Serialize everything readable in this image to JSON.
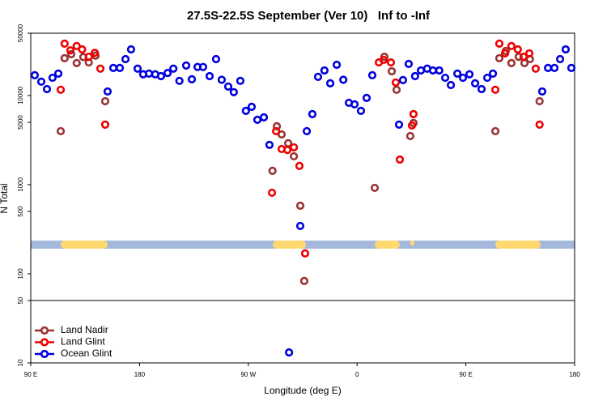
{
  "chart_data": {
    "type": "scatter",
    "title": "27.5S-22.5S September (Ver 10)   Inf to -Inf",
    "xlabel": "Longitude (deg E)",
    "ylabel": "N Total",
    "xlim": [
      90,
      540
    ],
    "xticks": [
      {
        "value": 90,
        "label": "90 E"
      },
      {
        "value": 180,
        "label": "180"
      },
      {
        "value": 270,
        "label": "90 W"
      },
      {
        "value": 360,
        "label": "0"
      },
      {
        "value": 450,
        "label": "90 E"
      },
      {
        "value": 540,
        "label": "180"
      }
    ],
    "ylim": [
      10,
      50000
    ],
    "yscale": "log",
    "yticks": [
      10,
      50,
      100,
      500,
      1000,
      5000,
      10000,
      50000
    ],
    "legend": "lower left",
    "series": [
      {
        "name": "Land Nadir",
        "color": "#993333",
        "x": [
          114.8,
          118,
          123.5,
          128,
          133.5,
          138,
          143.6,
          151.6,
          293.6,
          297.6,
          303,
          307.7,
          290,
          313,
          316.3,
          374.6,
          382.6,
          388.7,
          392.7,
          404,
          406.7,
          474.4,
          477.7,
          483,
          487.7,
          493.7,
          498.5,
          503,
          511
        ],
        "values": [
          3980,
          26200,
          29100,
          23100,
          27000,
          23500,
          28000,
          8630,
          4520,
          3660,
          2910,
          2080,
          1430,
          580,
          83,
          920,
          27200,
          18700,
          11600,
          3510,
          4910,
          3980,
          26200,
          31600,
          23100,
          27200,
          23100,
          25600,
          8630
        ]
      },
      {
        "name": "Land Glint",
        "color": "#ee0000",
        "x": [
          114.8,
          118,
          122.8,
          128,
          132.5,
          138,
          143,
          147.6,
          151.6,
          289.6,
          293,
          297.6,
          302.3,
          307.7,
          312.3,
          317,
          378,
          382,
          388,
          392,
          395.4,
          405.4,
          406.7,
          474.4,
          477.7,
          482.4,
          487.7,
          493,
          497.8,
          502.5,
          507.8,
          511
        ],
        "values": [
          11600,
          38200,
          32100,
          35900,
          32900,
          27200,
          30100,
          20000,
          4710,
          811,
          3980,
          2510,
          2450,
          2620,
          1620,
          169,
          23500,
          25100,
          23500,
          14000,
          1910,
          4610,
          6180,
          11600,
          38200,
          29700,
          35900,
          32900,
          27200,
          29700,
          20000,
          4710
        ]
      },
      {
        "name": "Ocean Glint",
        "color": "#0000dd",
        "x": [
          93.3,
          98.7,
          103.4,
          108,
          112.8,
          153.6,
          158.3,
          163.7,
          168.4,
          173,
          178.4,
          183,
          187.8,
          193,
          197.8,
          203.2,
          208,
          213,
          218.6,
          223.3,
          228,
          232.6,
          238,
          243.3,
          248,
          253.4,
          258,
          263.4,
          268,
          272.8,
          277.5,
          282.9,
          287.5,
          303.7,
          313,
          318.4,
          323,
          327.7,
          333,
          337.8,
          343.2,
          348.6,
          353.2,
          357.9,
          363.2,
          367.9,
          372.6,
          394.7,
          398,
          402.7,
          408,
          412.8,
          418,
          422.8,
          428,
          432.9,
          437.6,
          443,
          447.6,
          453,
          457.7,
          463,
          467.7,
          472.4,
          513.2,
          518,
          523.3,
          528,
          532.6,
          537.3
        ],
        "values": [
          16900,
          14300,
          11800,
          15800,
          17600,
          11100,
          20400,
          20400,
          25600,
          32900,
          20000,
          17300,
          17600,
          17300,
          16500,
          17900,
          20000,
          14600,
          21700,
          15200,
          20900,
          20900,
          16500,
          25600,
          15000,
          12600,
          10900,
          14600,
          6720,
          7460,
          5340,
          5690,
          2790,
          13.1,
          344,
          3980,
          6180,
          16200,
          19100,
          13700,
          22100,
          15000,
          8280,
          7960,
          6720,
          9400,
          16900,
          4710,
          14900,
          22600,
          16500,
          19100,
          20000,
          19100,
          19100,
          15800,
          13100,
          17600,
          15800,
          17300,
          13700,
          11800,
          15800,
          17600,
          11100,
          20400,
          20400,
          25600,
          32900,
          20400
        ]
      }
    ]
  }
}
